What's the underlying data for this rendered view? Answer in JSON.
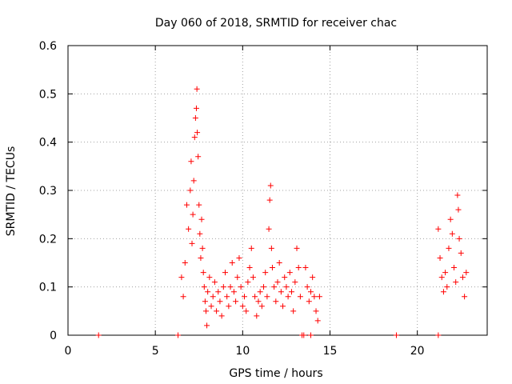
{
  "chart_data": {
    "type": "scatter",
    "title": "Day 060 of 2018, SRMTID for receiver chac",
    "xlabel": "GPS time / hours",
    "ylabel": "SRMTID / TECUs",
    "xlim": [
      0,
      24
    ],
    "ylim": [
      0,
      0.6
    ],
    "xticks": [
      0,
      5,
      10,
      15,
      20
    ],
    "yticks": [
      0,
      0.1,
      0.2,
      0.3,
      0.4,
      0.5,
      0.6
    ],
    "xtick_labels": [
      "0",
      "5",
      "10",
      "15",
      "20"
    ],
    "ytick_labels": [
      "0",
      "0.1",
      "0.2",
      "0.3",
      "0.4",
      "0.5",
      "0.6"
    ],
    "grid": true,
    "marker": "+",
    "marker_color": "#ff0000",
    "series": [
      {
        "name": "SRMTID",
        "points": [
          [
            1.75,
            0.0
          ],
          [
            6.3,
            0.0
          ],
          [
            13.4,
            0.0
          ],
          [
            13.5,
            0.0
          ],
          [
            13.9,
            0.0
          ],
          [
            18.8,
            0.0
          ],
          [
            21.2,
            0.0
          ],
          [
            6.5,
            0.12
          ],
          [
            6.6,
            0.08
          ],
          [
            6.7,
            0.15
          ],
          [
            6.8,
            0.27
          ],
          [
            6.9,
            0.22
          ],
          [
            7.0,
            0.3
          ],
          [
            7.05,
            0.36
          ],
          [
            7.1,
            0.19
          ],
          [
            7.15,
            0.25
          ],
          [
            7.2,
            0.32
          ],
          [
            7.25,
            0.41
          ],
          [
            7.3,
            0.45
          ],
          [
            7.35,
            0.47
          ],
          [
            7.38,
            0.51
          ],
          [
            7.4,
            0.42
          ],
          [
            7.45,
            0.37
          ],
          [
            7.5,
            0.27
          ],
          [
            7.55,
            0.21
          ],
          [
            7.6,
            0.16
          ],
          [
            7.65,
            0.24
          ],
          [
            7.7,
            0.18
          ],
          [
            7.75,
            0.13
          ],
          [
            7.8,
            0.1
          ],
          [
            7.85,
            0.07
          ],
          [
            7.9,
            0.05
          ],
          [
            7.95,
            0.02
          ],
          [
            8.0,
            0.09
          ],
          [
            8.1,
            0.12
          ],
          [
            8.2,
            0.06
          ],
          [
            8.3,
            0.08
          ],
          [
            8.4,
            0.11
          ],
          [
            8.5,
            0.05
          ],
          [
            8.6,
            0.09
          ],
          [
            8.7,
            0.07
          ],
          [
            8.8,
            0.04
          ],
          [
            8.9,
            0.1
          ],
          [
            9.0,
            0.13
          ],
          [
            9.1,
            0.08
          ],
          [
            9.2,
            0.06
          ],
          [
            9.3,
            0.1
          ],
          [
            9.4,
            0.15
          ],
          [
            9.5,
            0.09
          ],
          [
            9.6,
            0.07
          ],
          [
            9.7,
            0.12
          ],
          [
            9.8,
            0.16
          ],
          [
            9.9,
            0.1
          ],
          [
            10.0,
            0.06
          ],
          [
            10.1,
            0.08
          ],
          [
            10.2,
            0.05
          ],
          [
            10.3,
            0.11
          ],
          [
            10.4,
            0.14
          ],
          [
            10.5,
            0.18
          ],
          [
            10.6,
            0.12
          ],
          [
            10.7,
            0.08
          ],
          [
            10.8,
            0.04
          ],
          [
            10.9,
            0.07
          ],
          [
            11.0,
            0.09
          ],
          [
            11.1,
            0.06
          ],
          [
            11.2,
            0.1
          ],
          [
            11.3,
            0.13
          ],
          [
            11.4,
            0.08
          ],
          [
            11.5,
            0.22
          ],
          [
            11.55,
            0.28
          ],
          [
            11.6,
            0.31
          ],
          [
            11.65,
            0.18
          ],
          [
            11.7,
            0.14
          ],
          [
            11.8,
            0.1
          ],
          [
            11.9,
            0.07
          ],
          [
            12.0,
            0.11
          ],
          [
            12.1,
            0.15
          ],
          [
            12.2,
            0.09
          ],
          [
            12.3,
            0.06
          ],
          [
            12.4,
            0.12
          ],
          [
            12.5,
            0.1
          ],
          [
            12.6,
            0.08
          ],
          [
            12.7,
            0.13
          ],
          [
            12.8,
            0.09
          ],
          [
            12.9,
            0.05
          ],
          [
            13.0,
            0.11
          ],
          [
            13.1,
            0.18
          ],
          [
            13.2,
            0.14
          ],
          [
            13.3,
            0.08
          ],
          [
            13.6,
            0.14
          ],
          [
            13.7,
            0.1
          ],
          [
            13.8,
            0.07
          ],
          [
            13.9,
            0.09
          ],
          [
            14.0,
            0.12
          ],
          [
            14.1,
            0.08
          ],
          [
            14.2,
            0.05
          ],
          [
            14.3,
            0.03
          ],
          [
            14.4,
            0.08
          ],
          [
            21.2,
            0.22
          ],
          [
            21.3,
            0.16
          ],
          [
            21.4,
            0.12
          ],
          [
            21.5,
            0.09
          ],
          [
            21.6,
            0.13
          ],
          [
            21.7,
            0.1
          ],
          [
            21.8,
            0.18
          ],
          [
            21.9,
            0.24
          ],
          [
            22.0,
            0.21
          ],
          [
            22.1,
            0.14
          ],
          [
            22.2,
            0.11
          ],
          [
            22.3,
            0.29
          ],
          [
            22.35,
            0.26
          ],
          [
            22.4,
            0.2
          ],
          [
            22.5,
            0.17
          ],
          [
            22.6,
            0.12
          ],
          [
            22.7,
            0.08
          ],
          [
            22.8,
            0.13
          ]
        ]
      }
    ]
  }
}
